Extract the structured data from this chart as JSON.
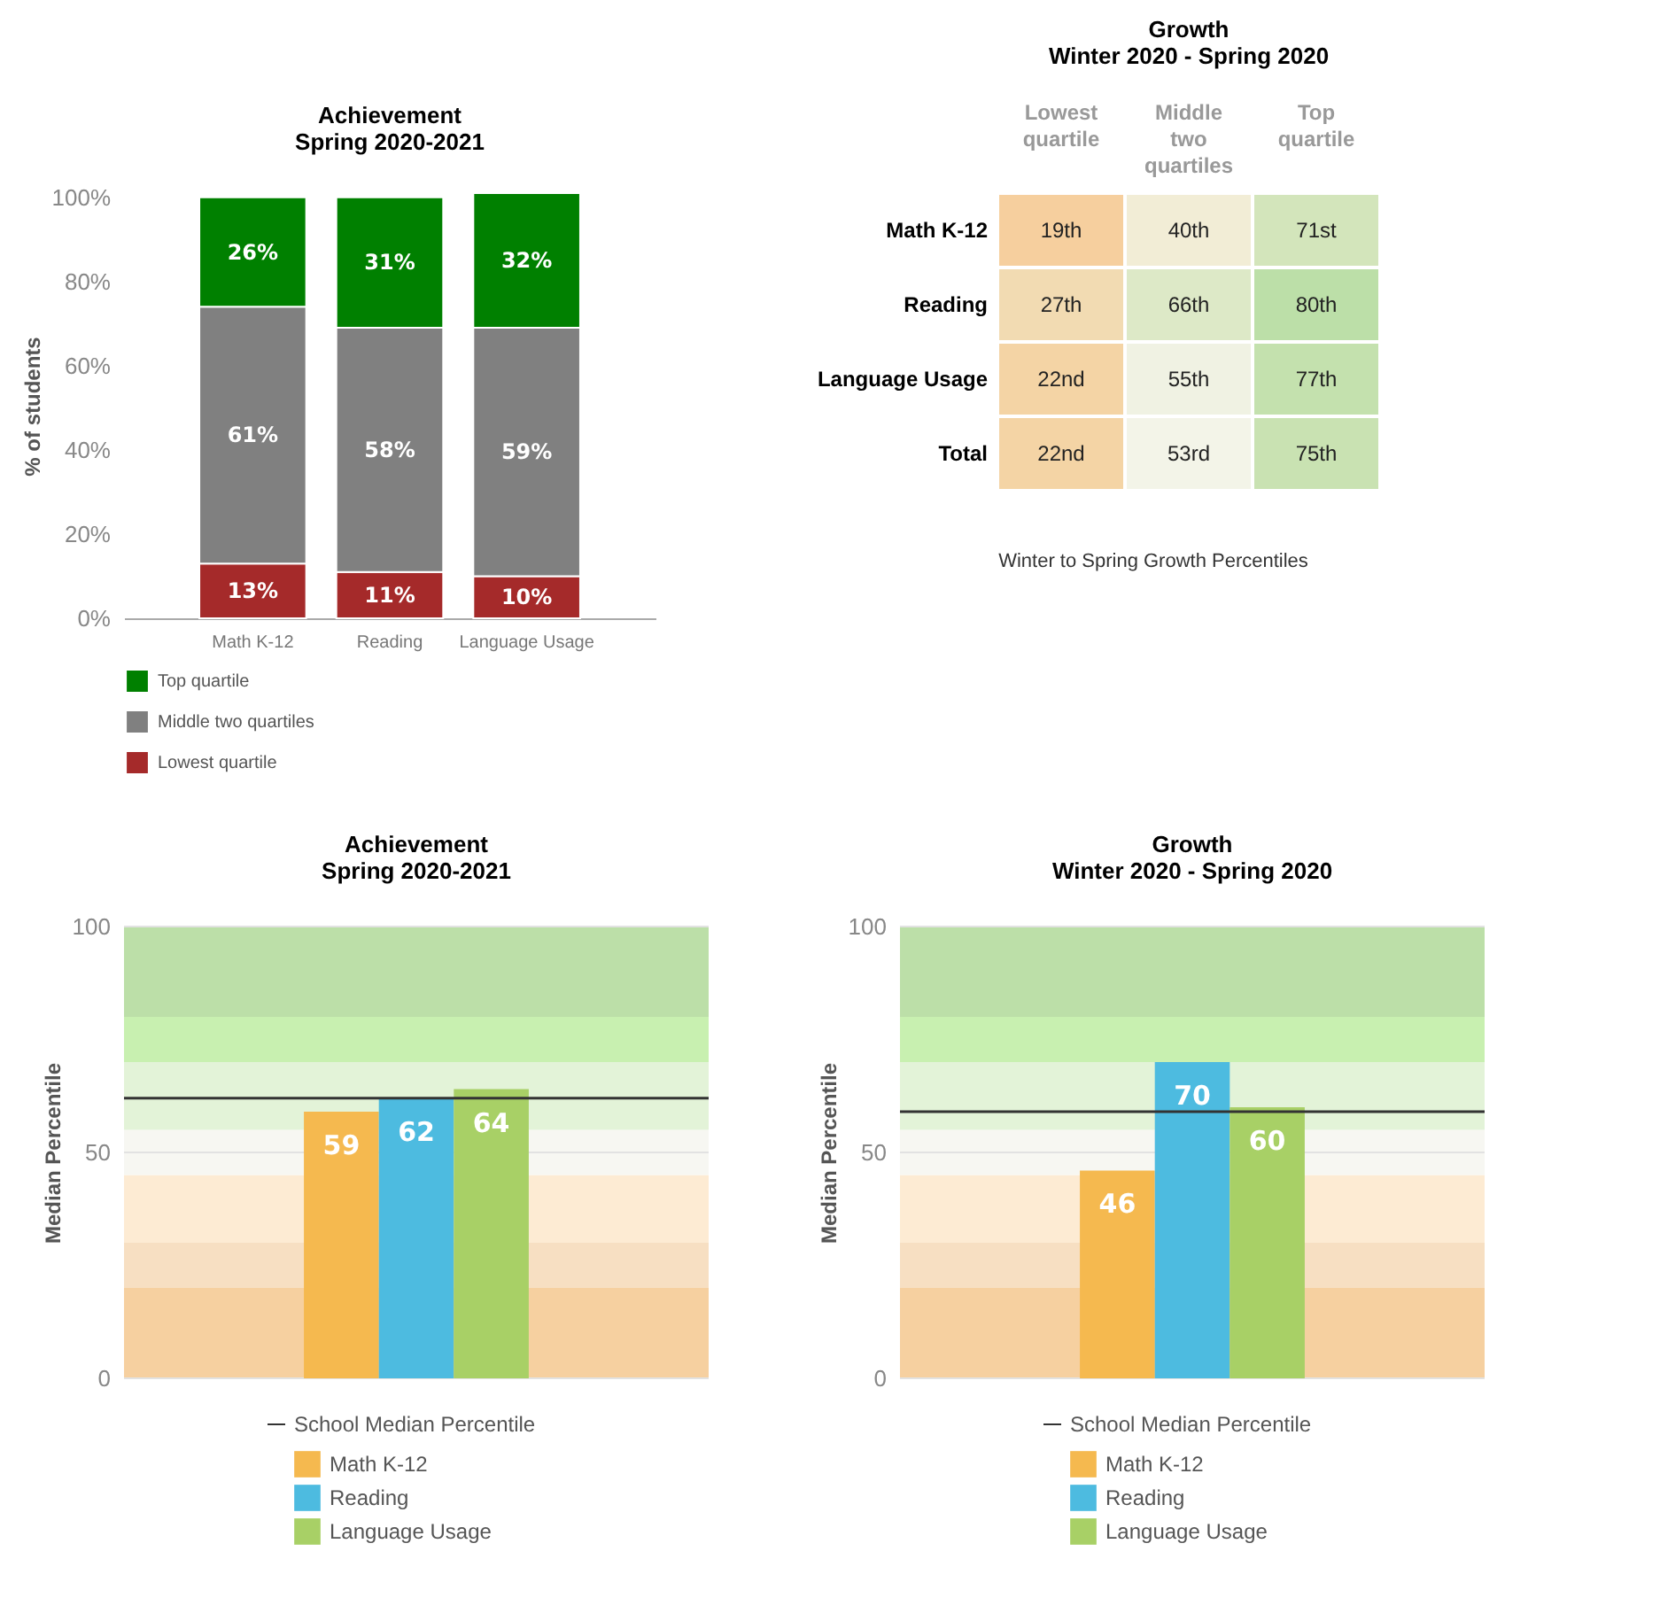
{
  "chart_data": [
    {
      "type": "bar",
      "title": "Achievement\nSpring 2020-2021",
      "ylabel": "% of students",
      "categories": [
        "Math K-12",
        "Reading",
        "Language Usage"
      ],
      "stacked": true,
      "series": [
        {
          "name": "Lowest quartile",
          "color": "#a52a2a",
          "values": [
            13,
            11,
            10
          ],
          "value_labels": [
            "13%",
            "11%",
            "10%"
          ]
        },
        {
          "name": "Middle two quartiles",
          "color": "#808080",
          "values": [
            61,
            58,
            59
          ],
          "value_labels": [
            "61%",
            "58%",
            "59%"
          ]
        },
        {
          "name": "Top quartile",
          "color": "#008000",
          "values": [
            26,
            31,
            32
          ],
          "value_labels": [
            "26%",
            "31%",
            "32%"
          ]
        }
      ],
      "ylim": [
        0,
        101
      ],
      "yticks": [
        {
          "value": 0,
          "label": "0%"
        },
        {
          "value": 20,
          "label": "20%"
        },
        {
          "value": 40,
          "label": "40%"
        },
        {
          "value": 60,
          "label": "60%"
        },
        {
          "value": 80,
          "label": "80%"
        },
        {
          "value": 100,
          "label": "100%"
        }
      ],
      "legend": "bottom"
    },
    {
      "type": "heatmap",
      "title": "Growth\nWinter 2020 - Spring 2020",
      "categories": [
        "Lowest quartile",
        "Middle two quartiles",
        "Top quartile"
      ],
      "y_categories": [
        "Math K-12",
        "Reading",
        "Language Usage",
        "Total"
      ],
      "cells": [
        [
          19,
          40,
          71
        ],
        [
          27,
          66,
          80
        ],
        [
          22,
          55,
          77
        ],
        [
          22,
          53,
          75
        ]
      ],
      "cell_labels": [
        [
          "19th",
          "40th",
          "71st"
        ],
        [
          "27th",
          "66th",
          "80th"
        ],
        [
          "22nd",
          "55th",
          "77th"
        ],
        [
          "22nd",
          "53rd",
          "75th"
        ]
      ],
      "annotations": [
        "Winter to Spring Growth Percentiles"
      ]
    },
    {
      "type": "bar",
      "title": "Achievement\nSpring 2020-2021",
      "ylabel": "Median Percentile",
      "categories": [
        null
      ],
      "series": [
        {
          "name": "Math K-12",
          "color": "#f5b94f",
          "values": [
            59
          ]
        },
        {
          "name": "Reading",
          "color": "#4dbbe0",
          "values": [
            62
          ]
        },
        {
          "name": "Language Usage",
          "color": "#a8d066",
          "values": [
            64
          ]
        }
      ],
      "ylim": [
        0,
        100
      ],
      "yticks": [
        0,
        50,
        100
      ],
      "grid": "y",
      "data_labels": true,
      "legend": "bottom",
      "ref_lines": [
        {
          "axis": "y",
          "value": 62,
          "label": "School Median Percentile",
          "color": "#333333"
        }
      ],
      "bands": [
        {
          "axis": "y",
          "from": 0,
          "to": 20,
          "color": "#f6d0a0"
        },
        {
          "axis": "y",
          "from": 20,
          "to": 30,
          "color": "#f7dfc2"
        },
        {
          "axis": "y",
          "from": 30,
          "to": 45,
          "color": "#fdebd3"
        },
        {
          "axis": "y",
          "from": 45,
          "to": 55,
          "color": "#f7f7f2"
        },
        {
          "axis": "y",
          "from": 55,
          "to": 70,
          "color": "#e3f3d8"
        },
        {
          "axis": "y",
          "from": 70,
          "to": 80,
          "color": "#c8f0b0"
        },
        {
          "axis": "y",
          "from": 80,
          "to": 100,
          "color": "#bcdfa8"
        }
      ]
    },
    {
      "type": "bar",
      "title": "Growth\nWinter 2020 - Spring 2020",
      "ylabel": "Median Percentile",
      "categories": [
        null
      ],
      "series": [
        {
          "name": "Math K-12",
          "color": "#f5b94f",
          "values": [
            46
          ]
        },
        {
          "name": "Reading",
          "color": "#4dbbe0",
          "values": [
            70
          ]
        },
        {
          "name": "Language Usage",
          "color": "#a8d066",
          "values": [
            60
          ]
        }
      ],
      "ylim": [
        0,
        100
      ],
      "yticks": [
        0,
        50,
        100
      ],
      "grid": "y",
      "data_labels": true,
      "legend": "bottom",
      "ref_lines": [
        {
          "axis": "y",
          "value": 59,
          "label": "School Median Percentile",
          "color": "#333333"
        }
      ],
      "bands": [
        {
          "axis": "y",
          "from": 0,
          "to": 20,
          "color": "#f6d0a0"
        },
        {
          "axis": "y",
          "from": 20,
          "to": 30,
          "color": "#f7dfc2"
        },
        {
          "axis": "y",
          "from": 30,
          "to": 45,
          "color": "#fdebd3"
        },
        {
          "axis": "y",
          "from": 45,
          "to": 55,
          "color": "#f7f7f2"
        },
        {
          "axis": "y",
          "from": 55,
          "to": 70,
          "color": "#e3f3d8"
        },
        {
          "axis": "y",
          "from": 70,
          "to": 80,
          "color": "#c8f0b0"
        },
        {
          "axis": "y",
          "from": 80,
          "to": 100,
          "color": "#bcdfa8"
        }
      ]
    }
  ]
}
